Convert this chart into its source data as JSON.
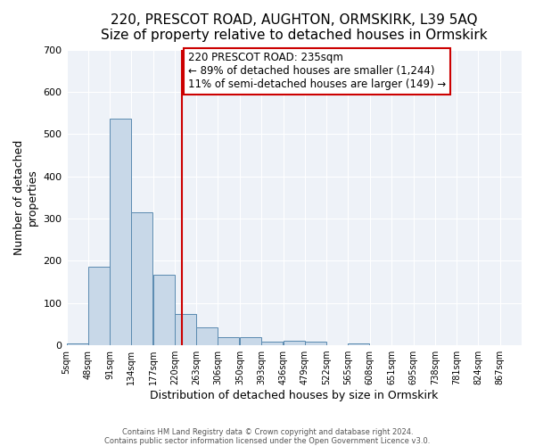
{
  "title": "220, PRESCOT ROAD, AUGHTON, ORMSKIRK, L39 5AQ",
  "subtitle": "Size of property relative to detached houses in Ormskirk",
  "xlabel": "Distribution of detached houses by size in Ormskirk",
  "ylabel": "Number of detached\nproperties",
  "bar_values": [
    5,
    187,
    537,
    315,
    168,
    75,
    42,
    19,
    19,
    8,
    11,
    8,
    0,
    5,
    0,
    0,
    0,
    0,
    0,
    0,
    0
  ],
  "bin_edges": [
    5,
    48,
    91,
    134,
    177,
    220,
    263,
    306,
    350,
    393,
    436,
    479,
    522,
    565,
    608,
    651,
    695,
    738,
    781,
    824,
    867
  ],
  "x_tick_labels": [
    "5sqm",
    "48sqm",
    "91sqm",
    "134sqm",
    "177sqm",
    "220sqm",
    "263sqm",
    "306sqm",
    "350sqm",
    "393sqm",
    "436sqm",
    "479sqm",
    "522sqm",
    "565sqm",
    "608sqm",
    "651sqm",
    "695sqm",
    "738sqm",
    "781sqm",
    "824sqm",
    "867sqm"
  ],
  "bar_color": "#c8d8e8",
  "bar_edge_color": "#5a8ab0",
  "vline_x": 235,
  "vline_color": "#cc0000",
  "annotation_text": "220 PRESCOT ROAD: 235sqm\n← 89% of detached houses are smaller (1,244)\n11% of semi-detached houses are larger (149) →",
  "annotation_box_color": "#cc0000",
  "ylim": [
    0,
    700
  ],
  "yticks": [
    0,
    100,
    200,
    300,
    400,
    500,
    600,
    700
  ],
  "background_color": "#eef2f8",
  "footer_line1": "Contains HM Land Registry data © Crown copyright and database right 2024.",
  "footer_line2": "Contains public sector information licensed under the Open Government Licence v3.0.",
  "title_fontsize": 11,
  "annotation_fontsize": 8.5
}
